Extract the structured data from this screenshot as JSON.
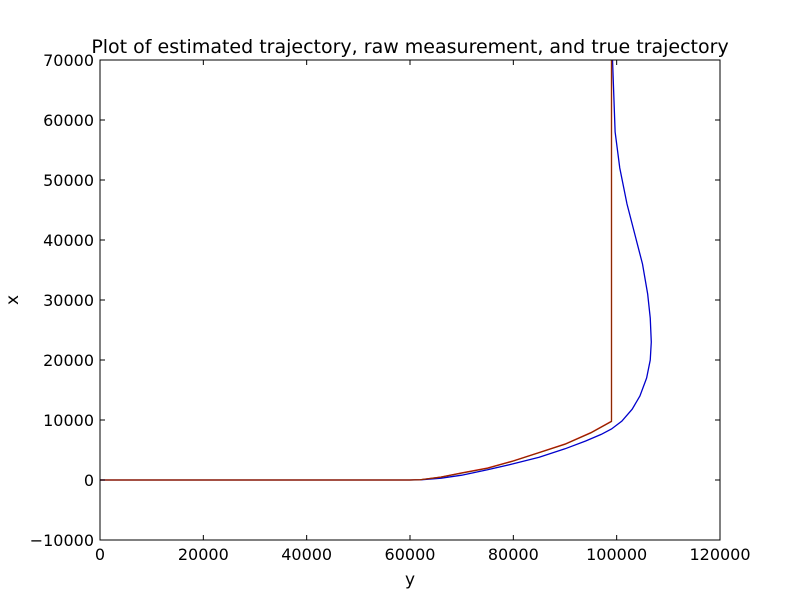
{
  "chart_data": {
    "type": "line",
    "title": "Plot of estimated trajectory, raw measurement, and true trajectory",
    "xlabel": "y",
    "ylabel": "x",
    "xlim": [
      0,
      120000
    ],
    "ylim": [
      -10000,
      70000
    ],
    "xticks": [
      0,
      20000,
      40000,
      60000,
      80000,
      100000,
      120000
    ],
    "yticks": [
      -10000,
      0,
      10000,
      20000,
      30000,
      40000,
      50000,
      60000,
      70000
    ],
    "xtick_labels": [
      "0",
      "20000",
      "40000",
      "60000",
      "80000",
      "100000",
      "120000"
    ],
    "ytick_labels": [
      "−10000",
      "0",
      "10000",
      "20000",
      "30000",
      "40000",
      "50000",
      "60000",
      "70000"
    ],
    "grid": false,
    "legend": "none",
    "series": [
      {
        "color": "#0000cc",
        "x": [
          0,
          20000,
          40000,
          60000,
          62000,
          66000,
          70000,
          75000,
          80000,
          85000,
          90000,
          94000,
          97000,
          99000,
          101000,
          103000,
          104500,
          105800,
          106500,
          106700,
          106500,
          106000,
          105000,
          103500,
          102000,
          100600,
          99700,
          99200
        ],
        "y": [
          0,
          0,
          0,
          0,
          30,
          300,
          800,
          1700,
          2700,
          3800,
          5200,
          6500,
          7600,
          8500,
          9800,
          11800,
          14000,
          17000,
          20000,
          23000,
          27000,
          31000,
          36000,
          41000,
          46000,
          52000,
          58000,
          70000
        ]
      },
      {
        "color": "#ff0000",
        "x": [
          0,
          20000,
          40000,
          60000,
          62000,
          66000,
          70000,
          75000,
          80000,
          85000,
          90000,
          95000,
          99000,
          99000,
          99000,
          99000,
          99000
        ],
        "y": [
          0,
          0,
          0,
          0,
          50,
          500,
          1200,
          2000,
          3200,
          4600,
          6000,
          7900,
          9800,
          20000,
          40000,
          60000,
          70000
        ]
      },
      {
        "color": "#8b2a00",
        "x": [
          0,
          20000,
          40000,
          60000,
          62000,
          66000,
          70000,
          75000,
          80000,
          85000,
          90000,
          95000,
          99000,
          99000,
          99000,
          99000,
          99000
        ],
        "y": [
          0,
          0,
          0,
          0,
          40,
          480,
          1150,
          1950,
          3150,
          4550,
          5950,
          7850,
          9750,
          20000,
          40000,
          60000,
          70000
        ]
      }
    ]
  }
}
